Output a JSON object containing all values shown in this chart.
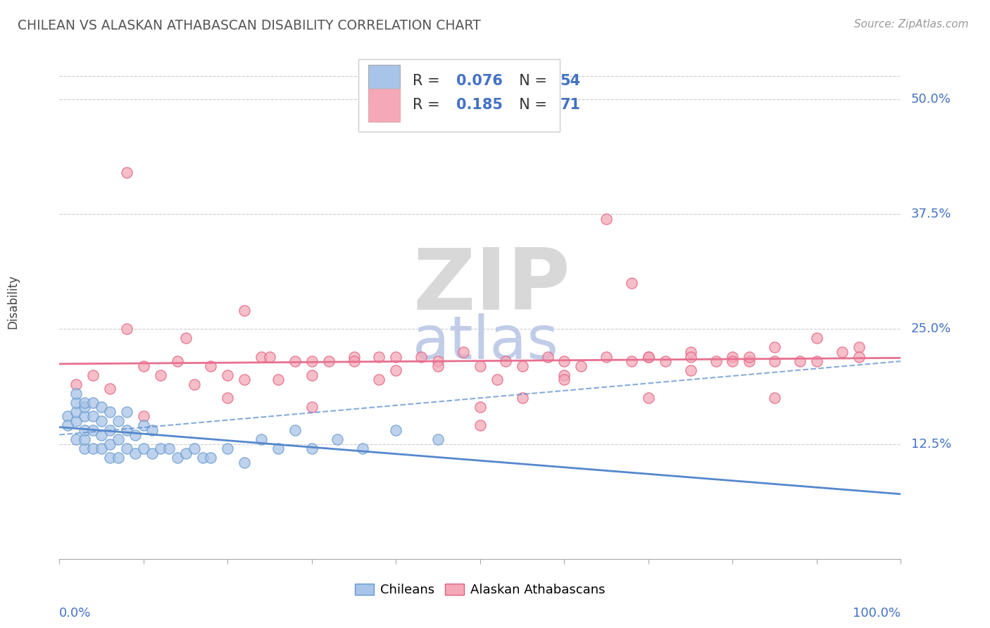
{
  "title": "CHILEAN VS ALASKAN ATHABASCAN DISABILITY CORRELATION CHART",
  "source": "Source: ZipAtlas.com",
  "ylabel": "Disability",
  "yticks": [
    0.125,
    0.25,
    0.375,
    0.5
  ],
  "ytick_labels": [
    "12.5%",
    "25.0%",
    "37.5%",
    "50.0%"
  ],
  "xlim": [
    0.0,
    1.0
  ],
  "ylim": [
    0.0,
    0.56
  ],
  "color_chilean": "#a8c4e8",
  "color_athabascan": "#f4a8b8",
  "color_text_blue": "#4472C4",
  "color_line_pink": "#e87090",
  "color_line_blue": "#5588cc",
  "watermark_zip_color": "#d8d8d8",
  "watermark_atlas_color": "#c0cce8",
  "chilean_x": [
    0.01,
    0.01,
    0.02,
    0.02,
    0.02,
    0.02,
    0.02,
    0.03,
    0.03,
    0.03,
    0.03,
    0.03,
    0.03,
    0.04,
    0.04,
    0.04,
    0.04,
    0.05,
    0.05,
    0.05,
    0.05,
    0.06,
    0.06,
    0.06,
    0.06,
    0.07,
    0.07,
    0.07,
    0.08,
    0.08,
    0.08,
    0.09,
    0.09,
    0.1,
    0.1,
    0.11,
    0.11,
    0.12,
    0.13,
    0.14,
    0.15,
    0.16,
    0.17,
    0.18,
    0.2,
    0.22,
    0.24,
    0.26,
    0.28,
    0.3,
    0.33,
    0.36,
    0.4,
    0.45
  ],
  "chilean_y": [
    0.155,
    0.145,
    0.13,
    0.15,
    0.16,
    0.17,
    0.18,
    0.12,
    0.13,
    0.14,
    0.155,
    0.165,
    0.17,
    0.12,
    0.14,
    0.155,
    0.17,
    0.12,
    0.135,
    0.15,
    0.165,
    0.11,
    0.125,
    0.14,
    0.16,
    0.11,
    0.13,
    0.15,
    0.12,
    0.14,
    0.16,
    0.115,
    0.135,
    0.12,
    0.145,
    0.115,
    0.14,
    0.12,
    0.12,
    0.11,
    0.115,
    0.12,
    0.11,
    0.11,
    0.12,
    0.105,
    0.13,
    0.12,
    0.14,
    0.12,
    0.13,
    0.12,
    0.14,
    0.13
  ],
  "athabascan_x": [
    0.02,
    0.04,
    0.06,
    0.08,
    0.1,
    0.12,
    0.14,
    0.16,
    0.18,
    0.2,
    0.22,
    0.24,
    0.26,
    0.28,
    0.3,
    0.32,
    0.35,
    0.38,
    0.4,
    0.43,
    0.45,
    0.48,
    0.5,
    0.53,
    0.55,
    0.58,
    0.6,
    0.62,
    0.65,
    0.68,
    0.7,
    0.72,
    0.75,
    0.78,
    0.8,
    0.82,
    0.85,
    0.88,
    0.9,
    0.93,
    0.95,
    0.08,
    0.15,
    0.22,
    0.3,
    0.38,
    0.45,
    0.52,
    0.6,
    0.68,
    0.75,
    0.82,
    0.9,
    0.25,
    0.35,
    0.5,
    0.65,
    0.8,
    0.4,
    0.55,
    0.7,
    0.85,
    0.3,
    0.6,
    0.75,
    0.2,
    0.5,
    0.7,
    0.85,
    0.95,
    0.1
  ],
  "athabascan_y": [
    0.19,
    0.2,
    0.185,
    0.42,
    0.21,
    0.2,
    0.215,
    0.19,
    0.21,
    0.2,
    0.27,
    0.22,
    0.195,
    0.215,
    0.2,
    0.215,
    0.22,
    0.195,
    0.22,
    0.22,
    0.215,
    0.225,
    0.21,
    0.215,
    0.21,
    0.22,
    0.215,
    0.21,
    0.37,
    0.3,
    0.22,
    0.215,
    0.225,
    0.215,
    0.22,
    0.215,
    0.23,
    0.215,
    0.24,
    0.225,
    0.23,
    0.25,
    0.24,
    0.195,
    0.215,
    0.22,
    0.21,
    0.195,
    0.2,
    0.215,
    0.205,
    0.22,
    0.215,
    0.22,
    0.215,
    0.165,
    0.22,
    0.215,
    0.205,
    0.175,
    0.22,
    0.215,
    0.165,
    0.195,
    0.22,
    0.175,
    0.145,
    0.175,
    0.175,
    0.22,
    0.155
  ]
}
